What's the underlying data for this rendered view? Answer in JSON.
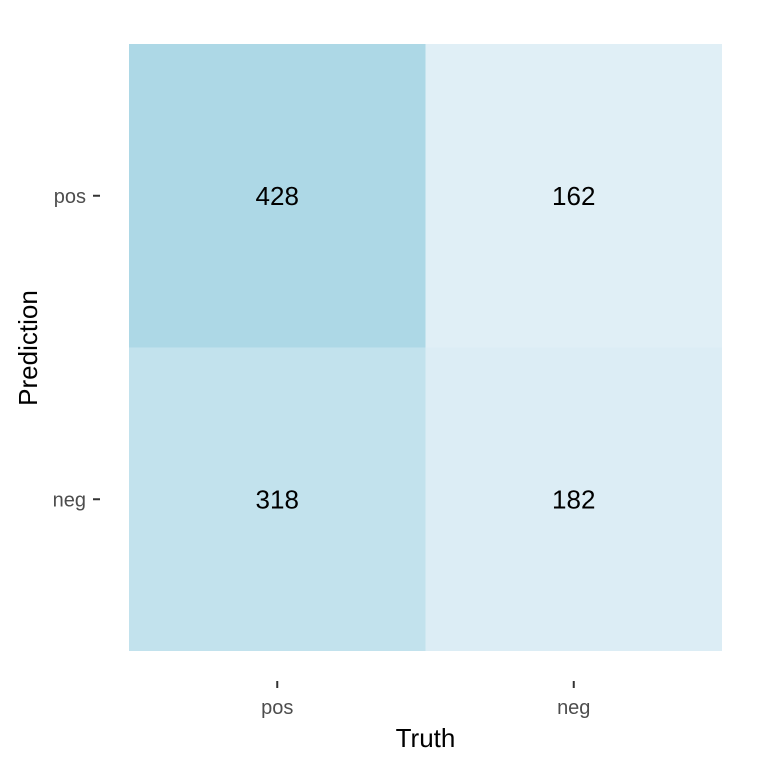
{
  "chart_data": {
    "type": "heatmap",
    "title": "",
    "xlabel": "Truth",
    "ylabel": "Prediction",
    "x_categories": [
      "pos",
      "neg"
    ],
    "y_categories": [
      "pos",
      "neg"
    ],
    "cells": [
      {
        "prediction": "pos",
        "truth": "pos",
        "value": 428
      },
      {
        "prediction": "pos",
        "truth": "neg",
        "value": 162
      },
      {
        "prediction": "neg",
        "truth": "pos",
        "value": 318
      },
      {
        "prediction": "neg",
        "truth": "neg",
        "value": 182
      }
    ],
    "colors": {
      "low": "#e0eff6",
      "high": "#add8e6"
    },
    "legend": "none",
    "grid": false
  }
}
